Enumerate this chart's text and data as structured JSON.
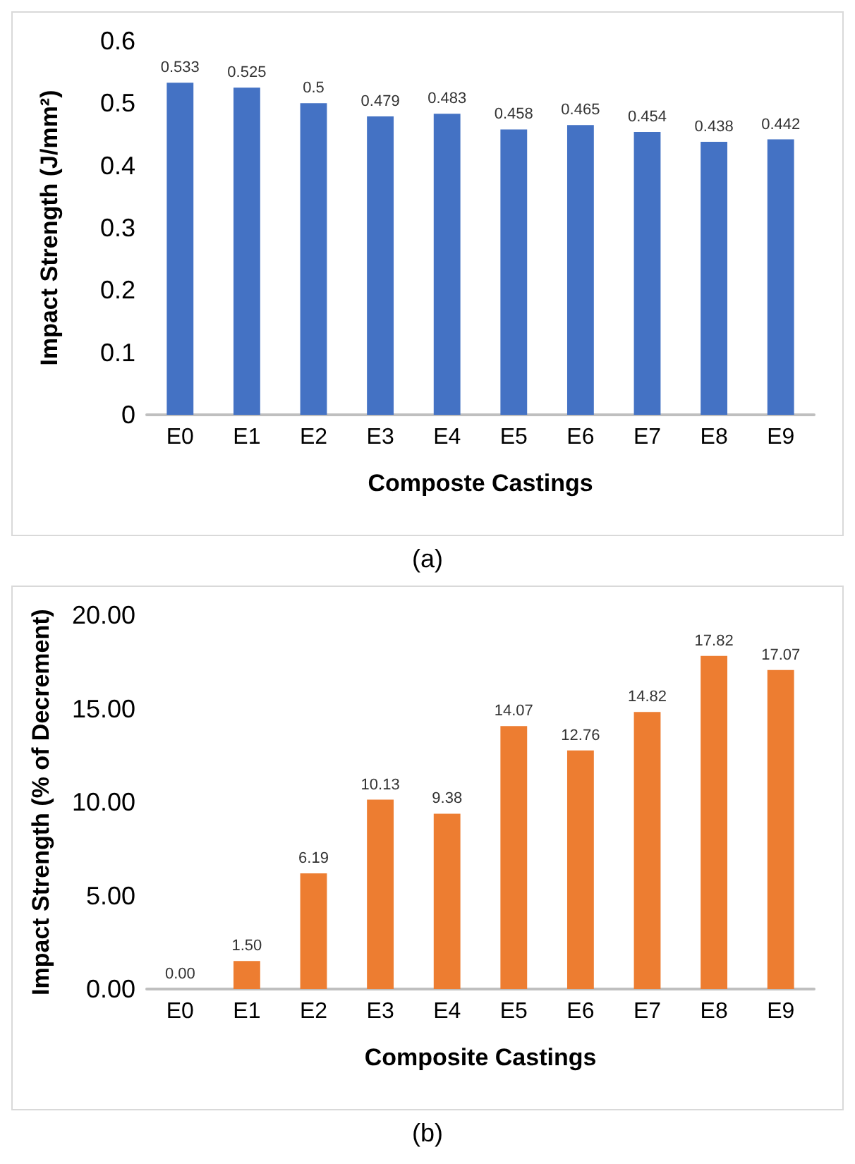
{
  "chart_data": [
    {
      "type": "bar",
      "categories": [
        "E0",
        "E1",
        "E2",
        "E3",
        "E4",
        "E5",
        "E6",
        "E7",
        "E8",
        "E9"
      ],
      "values": [
        0.533,
        0.525,
        0.5,
        0.479,
        0.483,
        0.458,
        0.465,
        0.454,
        0.438,
        0.442
      ],
      "color": "#4472c4",
      "data_labels": true,
      "ylabel": "Impact Strength (J/mm²)",
      "xlabel": "Composte Castings",
      "ylim": [
        0,
        0.6
      ],
      "yticks": [
        0,
        0.1,
        0.2,
        0.3,
        0.4,
        0.5,
        0.6
      ],
      "annotations": [
        "(a)"
      ]
    },
    {
      "type": "bar",
      "categories": [
        "E0",
        "E1",
        "E2",
        "E3",
        "E4",
        "E5",
        "E6",
        "E7",
        "E8",
        "E9"
      ],
      "values": [
        0,
        1.5,
        6.19,
        10.13,
        9.38,
        14.07,
        12.76,
        14.82,
        17.82,
        17.07
      ],
      "value_labels": [
        "0.00",
        "1.50",
        "6.19",
        "10.13",
        "9.38",
        "14.07",
        "12.76",
        "14.82",
        "17.82",
        "17.07"
      ],
      "color": "#ed7d31",
      "ylabel": "Impact Strength (% of Decrement)",
      "xlabel": "Composite Castings",
      "ylim": [
        0,
        20
      ],
      "yticks": [
        {
          "value": 0,
          "label": "0.00"
        },
        {
          "value": 5,
          "label": "5.00"
        },
        {
          "value": 10,
          "label": "10.00"
        },
        {
          "value": 15,
          "label": "15.00"
        },
        {
          "value": 20,
          "label": "20.00"
        }
      ],
      "annotations": [
        "(b)"
      ]
    }
  ]
}
